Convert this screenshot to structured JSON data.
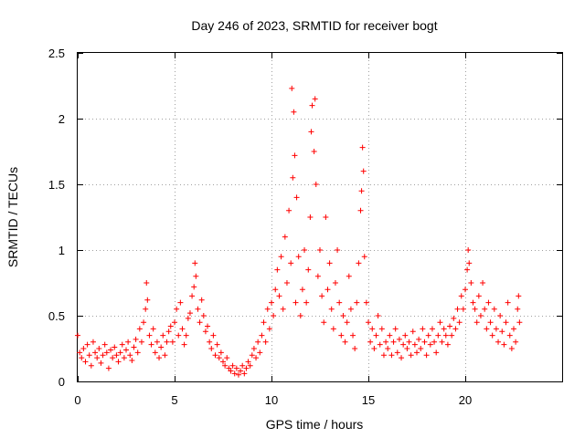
{
  "chart_data": {
    "type": "scatter",
    "title": "Day 246 of 2023, SRMTID for receiver bogt",
    "xlabel": "GPS time / hours",
    "ylabel": "SRMTID / TECUs",
    "xlim": [
      0,
      25
    ],
    "ylim": [
      0,
      2.5
    ],
    "xticks": [
      0,
      5,
      10,
      15,
      20
    ],
    "xtick_labels": [
      "0",
      "5",
      "10",
      "15",
      "20"
    ],
    "yticks": [
      0,
      0.5,
      1,
      1.5,
      2,
      2.5
    ],
    "ytick_labels": [
      "0",
      "0.5",
      "1",
      "1.5",
      "2",
      "2.5"
    ],
    "grid": true,
    "marker": "plus",
    "series": [
      {
        "name": "SRMTID",
        "color": "#ff0000",
        "points": [
          [
            0.0,
            0.35
          ],
          [
            0.1,
            0.22
          ],
          [
            0.2,
            0.18
          ],
          [
            0.3,
            0.25
          ],
          [
            0.4,
            0.15
          ],
          [
            0.5,
            0.28
          ],
          [
            0.6,
            0.2
          ],
          [
            0.7,
            0.12
          ],
          [
            0.8,
            0.3
          ],
          [
            0.9,
            0.22
          ],
          [
            1.0,
            0.18
          ],
          [
            1.1,
            0.25
          ],
          [
            1.2,
            0.14
          ],
          [
            1.3,
            0.2
          ],
          [
            1.4,
            0.28
          ],
          [
            1.5,
            0.22
          ],
          [
            1.6,
            0.1
          ],
          [
            1.7,
            0.24
          ],
          [
            1.8,
            0.18
          ],
          [
            1.9,
            0.26
          ],
          [
            2.0,
            0.2
          ],
          [
            2.1,
            0.15
          ],
          [
            2.2,
            0.22
          ],
          [
            2.3,
            0.28
          ],
          [
            2.4,
            0.18
          ],
          [
            2.5,
            0.24
          ],
          [
            2.6,
            0.3
          ],
          [
            2.7,
            0.2
          ],
          [
            2.8,
            0.16
          ],
          [
            2.9,
            0.26
          ],
          [
            3.0,
            0.32
          ],
          [
            3.1,
            0.22
          ],
          [
            3.2,
            0.4
          ],
          [
            3.3,
            0.3
          ],
          [
            3.4,
            0.45
          ],
          [
            3.5,
            0.55
          ],
          [
            3.55,
            0.75
          ],
          [
            3.6,
            0.62
          ],
          [
            3.7,
            0.35
          ],
          [
            3.8,
            0.28
          ],
          [
            3.9,
            0.4
          ],
          [
            4.0,
            0.22
          ],
          [
            4.1,
            0.3
          ],
          [
            4.2,
            0.18
          ],
          [
            4.3,
            0.26
          ],
          [
            4.4,
            0.35
          ],
          [
            4.5,
            0.2
          ],
          [
            4.6,
            0.3
          ],
          [
            4.7,
            0.38
          ],
          [
            4.8,
            0.42
          ],
          [
            4.9,
            0.3
          ],
          [
            5.0,
            0.45
          ],
          [
            5.1,
            0.55
          ],
          [
            5.2,
            0.35
          ],
          [
            5.3,
            0.6
          ],
          [
            5.4,
            0.4
          ],
          [
            5.5,
            0.28
          ],
          [
            5.6,
            0.35
          ],
          [
            5.7,
            0.48
          ],
          [
            5.8,
            0.52
          ],
          [
            5.9,
            0.65
          ],
          [
            6.0,
            0.72
          ],
          [
            6.05,
            0.9
          ],
          [
            6.1,
            0.8
          ],
          [
            6.2,
            0.55
          ],
          [
            6.3,
            0.45
          ],
          [
            6.4,
            0.62
          ],
          [
            6.5,
            0.5
          ],
          [
            6.6,
            0.38
          ],
          [
            6.7,
            0.42
          ],
          [
            6.8,
            0.3
          ],
          [
            6.9,
            0.25
          ],
          [
            7.0,
            0.35
          ],
          [
            7.1,
            0.2
          ],
          [
            7.2,
            0.28
          ],
          [
            7.3,
            0.18
          ],
          [
            7.4,
            0.22
          ],
          [
            7.5,
            0.15
          ],
          [
            7.6,
            0.12
          ],
          [
            7.7,
            0.18
          ],
          [
            7.8,
            0.1
          ],
          [
            7.9,
            0.08
          ],
          [
            8.0,
            0.12
          ],
          [
            8.1,
            0.06
          ],
          [
            8.2,
            0.1
          ],
          [
            8.3,
            0.05
          ],
          [
            8.4,
            0.08
          ],
          [
            8.5,
            0.12
          ],
          [
            8.6,
            0.06
          ],
          [
            8.7,
            0.1
          ],
          [
            8.8,
            0.15
          ],
          [
            8.9,
            0.12
          ],
          [
            9.0,
            0.2
          ],
          [
            9.1,
            0.25
          ],
          [
            9.2,
            0.18
          ],
          [
            9.3,
            0.3
          ],
          [
            9.4,
            0.22
          ],
          [
            9.5,
            0.35
          ],
          [
            9.6,
            0.45
          ],
          [
            9.7,
            0.3
          ],
          [
            9.8,
            0.55
          ],
          [
            9.9,
            0.4
          ],
          [
            10.0,
            0.6
          ],
          [
            10.1,
            0.5
          ],
          [
            10.2,
            0.7
          ],
          [
            10.3,
            0.85
          ],
          [
            10.4,
            0.65
          ],
          [
            10.5,
            0.95
          ],
          [
            10.6,
            0.55
          ],
          [
            10.7,
            1.1
          ],
          [
            10.8,
            0.75
          ],
          [
            10.9,
            1.3
          ],
          [
            11.0,
            0.9
          ],
          [
            11.05,
            2.23
          ],
          [
            11.1,
            1.55
          ],
          [
            11.15,
            2.05
          ],
          [
            11.2,
            1.72
          ],
          [
            11.25,
            0.6
          ],
          [
            11.3,
            1.4
          ],
          [
            11.4,
            0.95
          ],
          [
            11.5,
            0.5
          ],
          [
            11.6,
            0.7
          ],
          [
            11.7,
            1.0
          ],
          [
            11.8,
            0.6
          ],
          [
            11.9,
            0.85
          ],
          [
            12.0,
            1.25
          ],
          [
            12.05,
            1.9
          ],
          [
            12.1,
            2.1
          ],
          [
            12.2,
            1.75
          ],
          [
            12.25,
            2.15
          ],
          [
            12.3,
            1.5
          ],
          [
            12.4,
            0.8
          ],
          [
            12.5,
            1.0
          ],
          [
            12.6,
            0.65
          ],
          [
            12.7,
            0.45
          ],
          [
            12.8,
            1.25
          ],
          [
            12.9,
            0.7
          ],
          [
            13.0,
            0.9
          ],
          [
            13.1,
            0.55
          ],
          [
            13.2,
            0.4
          ],
          [
            13.3,
            0.75
          ],
          [
            13.4,
            1.0
          ],
          [
            13.5,
            0.6
          ],
          [
            13.6,
            0.35
          ],
          [
            13.7,
            0.5
          ],
          [
            13.8,
            0.3
          ],
          [
            13.9,
            0.45
          ],
          [
            14.0,
            0.8
          ],
          [
            14.1,
            0.55
          ],
          [
            14.2,
            0.35
          ],
          [
            14.3,
            0.25
          ],
          [
            14.4,
            0.6
          ],
          [
            14.5,
            0.9
          ],
          [
            14.6,
            1.3
          ],
          [
            14.65,
            1.45
          ],
          [
            14.7,
            1.78
          ],
          [
            14.75,
            1.6
          ],
          [
            14.8,
            0.95
          ],
          [
            14.9,
            0.6
          ],
          [
            15.0,
            0.45
          ],
          [
            15.1,
            0.3
          ],
          [
            15.2,
            0.4
          ],
          [
            15.3,
            0.25
          ],
          [
            15.4,
            0.35
          ],
          [
            15.5,
            0.5
          ],
          [
            15.6,
            0.28
          ],
          [
            15.7,
            0.4
          ],
          [
            15.8,
            0.2
          ],
          [
            15.9,
            0.3
          ],
          [
            16.0,
            0.25
          ],
          [
            16.1,
            0.35
          ],
          [
            16.2,
            0.2
          ],
          [
            16.3,
            0.3
          ],
          [
            16.4,
            0.4
          ],
          [
            16.5,
            0.22
          ],
          [
            16.6,
            0.32
          ],
          [
            16.7,
            0.18
          ],
          [
            16.8,
            0.28
          ],
          [
            16.9,
            0.35
          ],
          [
            17.0,
            0.25
          ],
          [
            17.1,
            0.3
          ],
          [
            17.2,
            0.2
          ],
          [
            17.3,
            0.38
          ],
          [
            17.4,
            0.28
          ],
          [
            17.5,
            0.22
          ],
          [
            17.6,
            0.32
          ],
          [
            17.7,
            0.25
          ],
          [
            17.8,
            0.4
          ],
          [
            17.9,
            0.3
          ],
          [
            18.0,
            0.2
          ],
          [
            18.1,
            0.35
          ],
          [
            18.2,
            0.28
          ],
          [
            18.3,
            0.4
          ],
          [
            18.4,
            0.3
          ],
          [
            18.5,
            0.22
          ],
          [
            18.6,
            0.35
          ],
          [
            18.7,
            0.45
          ],
          [
            18.8,
            0.3
          ],
          [
            18.9,
            0.4
          ],
          [
            19.0,
            0.35
          ],
          [
            19.1,
            0.28
          ],
          [
            19.2,
            0.42
          ],
          [
            19.3,
            0.35
          ],
          [
            19.4,
            0.48
          ],
          [
            19.5,
            0.4
          ],
          [
            19.6,
            0.55
          ],
          [
            19.7,
            0.45
          ],
          [
            19.8,
            0.65
          ],
          [
            19.9,
            0.55
          ],
          [
            20.0,
            0.7
          ],
          [
            20.1,
            0.85
          ],
          [
            20.15,
            1.0
          ],
          [
            20.2,
            0.9
          ],
          [
            20.3,
            0.75
          ],
          [
            20.4,
            0.6
          ],
          [
            20.5,
            0.55
          ],
          [
            20.6,
            0.45
          ],
          [
            20.7,
            0.65
          ],
          [
            20.8,
            0.5
          ],
          [
            20.9,
            0.75
          ],
          [
            21.0,
            0.55
          ],
          [
            21.1,
            0.4
          ],
          [
            21.2,
            0.6
          ],
          [
            21.3,
            0.45
          ],
          [
            21.4,
            0.35
          ],
          [
            21.5,
            0.55
          ],
          [
            21.6,
            0.4
          ],
          [
            21.7,
            0.3
          ],
          [
            21.8,
            0.5
          ],
          [
            21.9,
            0.38
          ],
          [
            22.0,
            0.28
          ],
          [
            22.1,
            0.45
          ],
          [
            22.2,
            0.6
          ],
          [
            22.3,
            0.35
          ],
          [
            22.4,
            0.25
          ],
          [
            22.5,
            0.4
          ],
          [
            22.6,
            0.3
          ],
          [
            22.7,
            0.55
          ],
          [
            22.75,
            0.65
          ],
          [
            22.8,
            0.45
          ]
        ]
      }
    ]
  }
}
